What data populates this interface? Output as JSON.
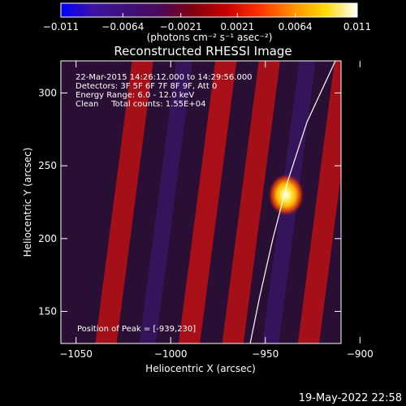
{
  "chart_data": {
    "type": "heatmap",
    "title": "Reconstructed RHESSI Image",
    "xlabel": "Heliocentric X (arcsec)",
    "ylabel": "Heliocentric Y (arcsec)",
    "xlim": [
      -1058,
      -910
    ],
    "ylim": [
      128,
      322
    ],
    "x_ticks": [
      -1050,
      -1000,
      -950,
      -900
    ],
    "y_ticks": [
      150,
      200,
      250,
      300
    ],
    "x_tick_labels": [
      "−1050",
      "−1000",
      "−950",
      "−900"
    ],
    "y_tick_labels": [
      "150",
      "200",
      "250",
      "300"
    ],
    "colorbar": {
      "range": [
        -0.011,
        0.011
      ],
      "ticks": [
        -0.011,
        -0.0064,
        -0.0021,
        0.0021,
        0.0064,
        0.011
      ],
      "tick_labels": [
        "−0.011",
        "−0.0064",
        "−0.0021",
        "0.0021",
        "0.0064",
        "0.011"
      ],
      "units_label": "(photons cm⁻² s⁻¹ asec⁻²)",
      "colors": [
        "#0000ff",
        "#3c14a0",
        "#40107a",
        "#4a0a5a",
        "#800010",
        "#c40000",
        "#ff3000",
        "#ff8a00",
        "#ffd800",
        "#ffffff"
      ]
    },
    "annotations": [
      "22-Mar-2015 14:26:12.000 to 14:29:56.000",
      "Detectors: 3F 5F 6F 7F 8F 9F, Att 0",
      "Energy Range: 6.0 - 12.0 keV",
      "Clean     Total counts: 1.55E+04"
    ],
    "peak_label": "Position of Peak = [-939,230]",
    "peak": {
      "x": -939,
      "y": 230,
      "value": 0.011
    },
    "stripes": [
      {
        "x_at_y150": -1032,
        "slope_dx_per_dy": 0.1,
        "sign": 1,
        "amp": 0.45
      },
      {
        "x_at_y150": -1010,
        "slope_dx_per_dy": 0.1,
        "sign": -1,
        "amp": 0.25
      },
      {
        "x_at_y150": -988,
        "slope_dx_per_dy": 0.1,
        "sign": 1,
        "amp": 0.5
      },
      {
        "x_at_y150": -965,
        "slope_dx_per_dy": 0.1,
        "sign": 1,
        "amp": 0.45
      },
      {
        "x_at_y150": -945,
        "slope_dx_per_dy": 0.1,
        "sign": -1,
        "amp": 0.2
      },
      {
        "x_at_y150": -925,
        "slope_dx_per_dy": 0.1,
        "sign": 1,
        "amp": 0.45
      },
      {
        "x_at_y150": -900,
        "slope_dx_per_dy": 0.1,
        "sign": -1,
        "amp": 0.35
      },
      {
        "x_at_y150": -880,
        "slope_dx_per_dy": 0.1,
        "sign": 1,
        "amp": 0.45
      }
    ],
    "limb_curve": [
      {
        "x": -958,
        "y": 128
      },
      {
        "x": -953,
        "y": 160
      },
      {
        "x": -946,
        "y": 200
      },
      {
        "x": -938,
        "y": 240
      },
      {
        "x": -928,
        "y": 280
      },
      {
        "x": -913,
        "y": 322
      }
    ],
    "grid": false
  },
  "footer": {
    "date_stamp": "19-May-2022 22:58"
  }
}
